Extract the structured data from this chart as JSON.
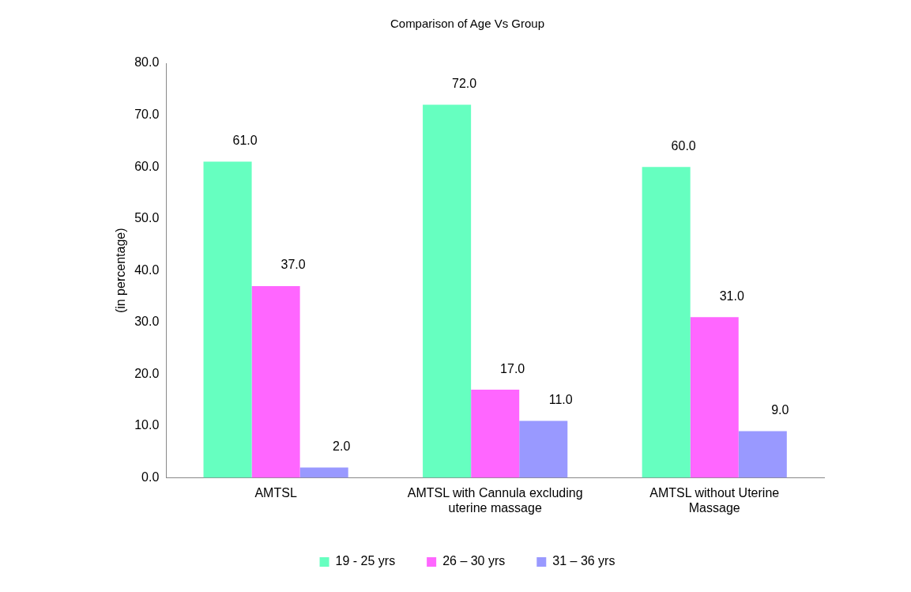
{
  "chart_data": {
    "type": "bar",
    "title": "Comparison of Age Vs Group",
    "ylabel": "(in percentage)",
    "categories": [
      "AMTSL",
      "AMTSL with Cannula excluding uterine massage",
      "AMTSL without Uterine Massage"
    ],
    "series": [
      {
        "name": "19 - 25 yrs",
        "color": "#66ffc0",
        "values": [
          61,
          72,
          60
        ],
        "value_labels": [
          "61.0",
          "72.0",
          "60.0"
        ]
      },
      {
        "name": "26 – 30 yrs",
        "color": "#ff66ff",
        "values": [
          37,
          17,
          31
        ],
        "value_labels": [
          "37.0",
          "17.0",
          "31.0"
        ]
      },
      {
        "name": "31 – 36 yrs",
        "color": "#9999ff",
        "values": [
          2,
          11,
          9
        ],
        "value_labels": [
          "2.0",
          "11.0",
          "9.0"
        ]
      }
    ],
    "ylim": [
      0,
      80
    ],
    "yticks": [
      {
        "value": 0,
        "label": "0.0"
      },
      {
        "value": 10,
        "label": "10.0"
      },
      {
        "value": 20,
        "label": "20.0"
      },
      {
        "value": 30,
        "label": "30.0"
      },
      {
        "value": 40,
        "label": "40.0"
      },
      {
        "value": 50,
        "label": "50.0"
      },
      {
        "value": 60,
        "label": "60.0"
      },
      {
        "value": 70,
        "label": "70.0"
      },
      {
        "value": 80,
        "label": "80.0"
      }
    ],
    "legend": "bottom",
    "grid": false
  }
}
